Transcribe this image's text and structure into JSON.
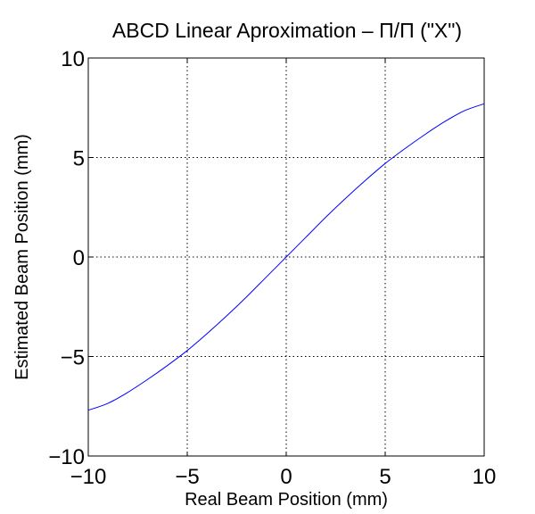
{
  "chart_data": {
    "type": "line",
    "title": "ABCD Linear Aproximation – Π/Π (\"X\")",
    "xlabel": "Real Beam Position (mm)",
    "ylabel": "Estimated Beam Position (mm)",
    "xlim": [
      -10,
      10
    ],
    "ylim": [
      -10,
      10
    ],
    "xticks": [
      -10,
      -5,
      0,
      5,
      10
    ],
    "yticks": [
      -10,
      -5,
      0,
      5,
      10
    ],
    "xtick_labels": [
      "−10",
      "−5",
      "0",
      "5",
      "10"
    ],
    "ytick_labels": [
      "−10",
      "−5",
      "0",
      "5",
      "10"
    ],
    "grid": true,
    "series": [
      {
        "color": "#0000ff",
        "x": [
          -10,
          -9,
          -8,
          -7,
          -6,
          -5,
          -4,
          -3,
          -2,
          -1,
          0,
          1,
          2,
          3,
          4,
          5,
          6,
          7,
          8,
          9,
          10
        ],
        "y": [
          -7.7,
          -7.35,
          -6.8,
          -6.15,
          -5.45,
          -4.7,
          -3.85,
          -2.95,
          -2.0,
          -1.0,
          0,
          1.0,
          2.0,
          2.95,
          3.85,
          4.7,
          5.45,
          6.15,
          6.8,
          7.35,
          7.7
        ]
      }
    ]
  }
}
